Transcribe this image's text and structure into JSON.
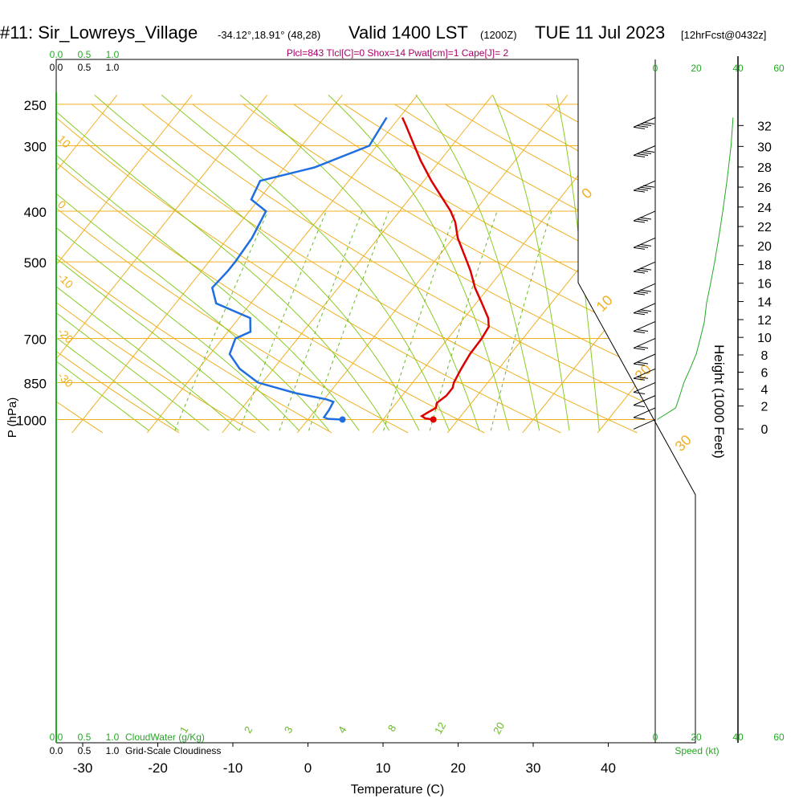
{
  "header": {
    "station": "#11: Sir_Lowreys_Village",
    "coords": "-34.12°,18.91° (48,28)",
    "valid": "Valid 1400 LST",
    "zulu": "(1200Z)",
    "date": "TUE 11 Jul 2023",
    "fcst": "[12hrFcst@0432z]"
  },
  "indices_line": "Plcl=843 Tlcl[C]=0 Shox=14 Pwat[cm]=1 Cape[J]= 2",
  "colors": {
    "temperature": "#dd0000",
    "dewpoint": "#1f6fe0",
    "isotherm": "#f0b020",
    "dry_adiabat": "#f0b020",
    "moist_adiabat": "#88cc22",
    "mixing_ratio": "#66bb22",
    "cloudwater": "#22aa22",
    "indices": "#aa0066"
  },
  "chart_data": {
    "type": "skew-t",
    "xlabel": "Temperature (C)",
    "ylabel": "P (hPa)",
    "ylabel_right": "Height (1000 Feet)",
    "xlim": [
      -35,
      50
    ],
    "ylim_hpa": [
      1050,
      250
    ],
    "x_ticks": [
      -30,
      -20,
      -10,
      0,
      10,
      20,
      30,
      40
    ],
    "pressure_ticks": [
      250,
      300,
      400,
      500,
      700,
      850,
      1000
    ],
    "height_ticks_kft": [
      0,
      2,
      4,
      6,
      8,
      10,
      12,
      14,
      16,
      18,
      20,
      22,
      24,
      26,
      28,
      30,
      32
    ],
    "cloud_scale_labels": [
      "0.0",
      "0.5",
      "1.0"
    ],
    "cloudwater_label": "CloudWater (g/Kg)",
    "cloudiness_label": "Grid-Scale Cloudiness",
    "wind_scale_labels": [
      "0",
      "20",
      "40",
      "60"
    ],
    "wind_label": "Speed (kt)",
    "isotherm_labels": [
      "10",
      "0",
      "-10",
      "-20",
      "-30"
    ],
    "theta_labels": [
      "0",
      "10",
      "20",
      "30"
    ],
    "mixing_ratio_labels": [
      "1",
      "2",
      "3",
      "4",
      "8",
      "12",
      "20"
    ],
    "series": [
      {
        "name": "Temperature",
        "points": [
          [
            1000,
            16.7
          ],
          [
            995,
            15.5
          ],
          [
            985,
            14.8
          ],
          [
            970,
            15.2
          ],
          [
            950,
            15.8
          ],
          [
            930,
            15.4
          ],
          [
            900,
            15.9
          ],
          [
            870,
            15.9
          ],
          [
            850,
            15.5
          ],
          [
            800,
            15.0
          ],
          [
            750,
            14.6
          ],
          [
            700,
            14.5
          ],
          [
            665,
            14.2
          ],
          [
            640,
            13.2
          ],
          [
            600,
            10.8
          ],
          [
            560,
            8.2
          ],
          [
            520,
            5.8
          ],
          [
            500,
            4.4
          ],
          [
            450,
            0.6
          ],
          [
            420,
            -1.4
          ],
          [
            400,
            -3.2
          ],
          [
            350,
            -9.0
          ],
          [
            320,
            -12.6
          ],
          [
            300,
            -15.0
          ],
          [
            275,
            -18.2
          ],
          [
            265,
            -19.6
          ]
        ]
      },
      {
        "name": "Dewpoint",
        "points": [
          [
            1000,
            4.6
          ],
          [
            997,
            2.6
          ],
          [
            990,
            1.9
          ],
          [
            960,
            1.8
          ],
          [
            925,
            1.5
          ],
          [
            915,
            0.3
          ],
          [
            890,
            -4.5
          ],
          [
            850,
            -10.6
          ],
          [
            800,
            -14.5
          ],
          [
            750,
            -17.4
          ],
          [
            700,
            -18.3
          ],
          [
            680,
            -17.0
          ],
          [
            640,
            -18.5
          ],
          [
            600,
            -24.6
          ],
          [
            560,
            -26.8
          ],
          [
            520,
            -26.5
          ],
          [
            500,
            -26.5
          ],
          [
            450,
            -26.8
          ],
          [
            400,
            -27.8
          ],
          [
            380,
            -31.0
          ],
          [
            350,
            -31.8
          ],
          [
            330,
            -26.0
          ],
          [
            300,
            -21.0
          ],
          [
            285,
            -21.3
          ],
          [
            265,
            -21.7
          ]
        ]
      }
    ],
    "wind_speed_kt": [
      [
        1000,
        1
      ],
      [
        950,
        10
      ],
      [
        900,
        12
      ],
      [
        850,
        14
      ],
      [
        800,
        17
      ],
      [
        750,
        20
      ],
      [
        700,
        22
      ],
      [
        650,
        24
      ],
      [
        600,
        25
      ],
      [
        550,
        27
      ],
      [
        500,
        29
      ],
      [
        450,
        31
      ],
      [
        400,
        33
      ],
      [
        350,
        35
      ],
      [
        300,
        37
      ],
      [
        265,
        38
      ]
    ],
    "cloudwater": [
      [
        1000,
        0
      ],
      [
        260,
        0
      ]
    ]
  }
}
